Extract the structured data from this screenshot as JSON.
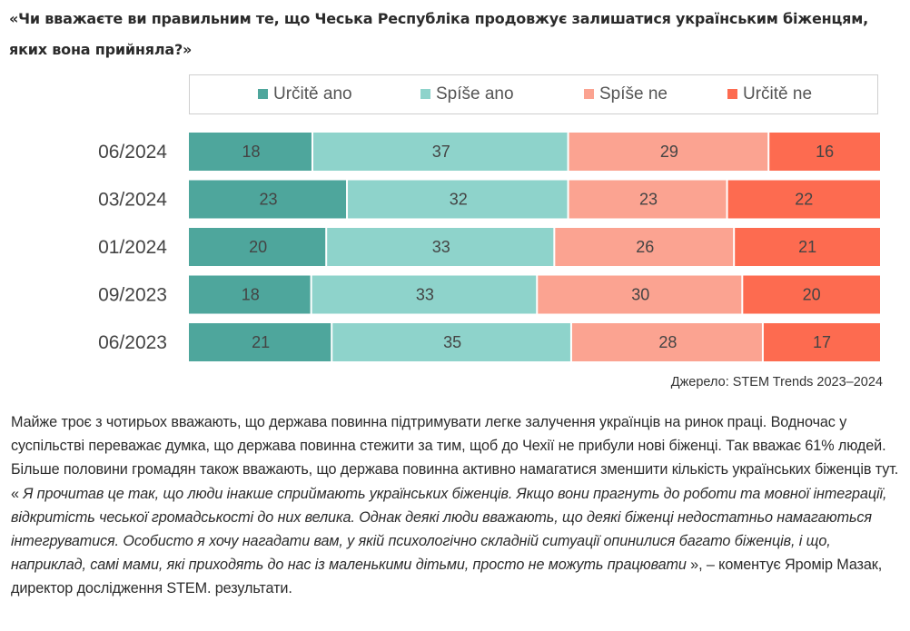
{
  "question": "«Чи вважаєте ви правильним те, що Чеська Республіка продовжує залишатися українським біженцям, яких вона прийняла?»",
  "chart_data": {
    "type": "bar",
    "orientation": "horizontal",
    "stacked": true,
    "title": "«Чи вважаєте ви правильним те, що Чеська Республіка продовжує залишатися українським біженцям, яких вона прийняла?»",
    "xlabel": "",
    "ylabel": "",
    "xlim": [
      0,
      100
    ],
    "grid": false,
    "legend_position": "top",
    "categories": [
      "06/2024",
      "03/2024",
      "01/2024",
      "09/2023",
      "06/2023"
    ],
    "series": [
      {
        "name": "Určitě ano",
        "color": "#4ea69c",
        "values": [
          18,
          23,
          20,
          18,
          21
        ]
      },
      {
        "name": "Spíše ano",
        "color": "#8ed3cb",
        "values": [
          37,
          32,
          33,
          33,
          35
        ]
      },
      {
        "name": "Spíše ne",
        "color": "#fba391",
        "values": [
          29,
          23,
          26,
          30,
          28
        ]
      },
      {
        "name": "Určitě ne",
        "color": "#fd6b50",
        "values": [
          16,
          22,
          21,
          20,
          17
        ]
      }
    ],
    "source": "Джерело: STEM Trends 2023–2024"
  },
  "colors": {
    "label_text": "#444444",
    "category_text": "#444444"
  },
  "article": {
    "plain_1": "Майже троє з чотирьох вважають, що держава повинна підтримувати легке залучення українців на ринок праці. Водночас у суспільстві переважає думка, що держава повинна стежити за тим, щоб до Чехії не прибули нові біженці. Так вважає 61% людей. Більше половини громадян також вважають, що держава повинна активно намагатися зменшити кількість українських біженців тут. « ",
    "quote": "Я прочитав це так, що люди інакше сприймають українських біженців. Якщо вони прагнуть до роботи та мовної інтеграції, відкритість чеської громадськості до них велика. Однак деякі люди вважають, що деякі біженці недостатньо намагаються інтегруватися. Особисто я хочу нагадати вам, у якій психологічно складній ситуації опинилися багато біженців, і що, наприклад, самі мами, які приходять до нас із маленькими дітьми, просто не можуть працювати",
    "plain_2": " », – коментує Яромір Мазак, директор дослідження STEM. результати."
  }
}
